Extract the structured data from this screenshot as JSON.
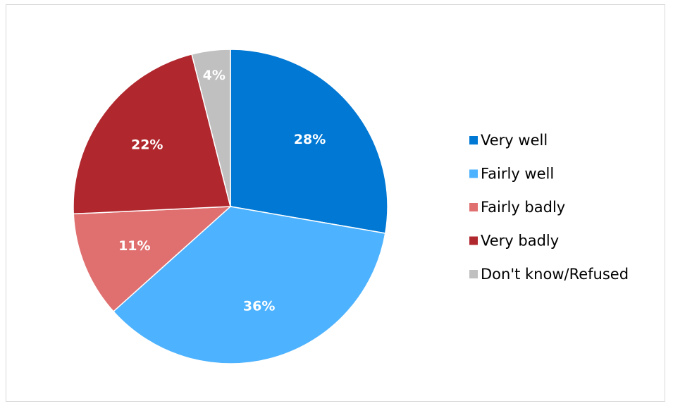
{
  "chart_data": {
    "type": "pie",
    "title": "",
    "legend_position": "right",
    "slices": [
      {
        "name": "Very well",
        "value": 28,
        "label": "28%",
        "color": "#0078d4"
      },
      {
        "name": "Fairly well",
        "value": 36,
        "label": "36%",
        "color": "#4db2ff"
      },
      {
        "name": "Fairly badly",
        "value": 11,
        "label": "11%",
        "color": "#e07070"
      },
      {
        "name": "Very badly",
        "value": 22,
        "label": "22%",
        "color": "#b0282e"
      },
      {
        "name": "Don't know/Refused",
        "value": 4,
        "label": "4%",
        "color": "#c0c0c0"
      }
    ]
  }
}
